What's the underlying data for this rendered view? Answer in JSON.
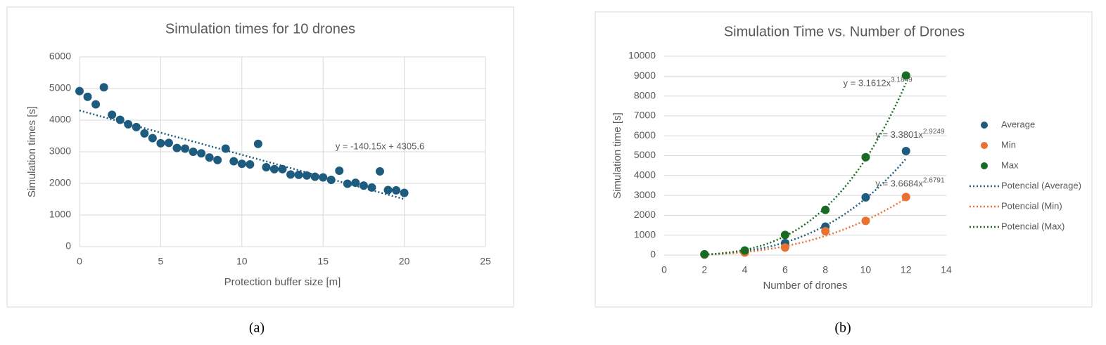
{
  "chart_data": [
    {
      "type": "scatter",
      "title": "Simulation times for 10 drones",
      "caption": "(a)",
      "x_label": "Protection buffer size [m]",
      "y_label": "Simulation times [s]",
      "x": [
        0,
        0.5,
        1,
        1.5,
        2,
        2.5,
        3,
        3.5,
        4,
        4.5,
        5,
        5.5,
        6,
        6.5,
        7,
        7.5,
        8,
        8.5,
        9,
        9.5,
        10,
        10.5,
        11,
        11.5,
        12,
        12.5,
        13,
        13.5,
        14,
        14.5,
        15,
        15.5,
        16,
        16.5,
        17,
        17.5,
        18,
        18.5,
        19,
        19.5,
        20
      ],
      "values": [
        4920,
        4740,
        4500,
        5040,
        4170,
        4010,
        3870,
        3780,
        3580,
        3430,
        3270,
        3280,
        3120,
        3100,
        3000,
        2950,
        2820,
        2740,
        3100,
        2700,
        2620,
        2600,
        3250,
        2510,
        2450,
        2450,
        2280,
        2270,
        2250,
        2210,
        2190,
        2110,
        2400,
        1990,
        2020,
        1930,
        1870,
        2380,
        1790,
        1780,
        1700
      ],
      "color": "#1d5b7f",
      "trendline": {
        "kind": "linear",
        "slope": -140.15,
        "intercept": 4305.6,
        "label": "y = -140.15x + 4305.6"
      },
      "xlim": [
        0,
        25
      ],
      "xticks": [
        0,
        5,
        10,
        15,
        20,
        25
      ],
      "ylim": [
        0,
        6000
      ],
      "yticks": [
        0,
        1000,
        2000,
        3000,
        4000,
        5000,
        6000
      ],
      "grid": "both"
    },
    {
      "type": "scatter",
      "title": "Simulation Time vs. Number of Drones",
      "caption": "(b)",
      "x_label": "Number of drones",
      "y_label": "Simulation time [s]",
      "x": [
        2,
        4,
        6,
        8,
        10,
        12
      ],
      "series": [
        {
          "name": "Average",
          "color": "#1d5b7f",
          "values": [
            30,
            200,
            600,
            1430,
            2900,
            5230
          ],
          "trendline": {
            "kind": "power",
            "name": "Potencial (Average)",
            "a": 3.3801,
            "b": 2.9249,
            "label": "y = 3.3801x",
            "label_exponent": "2.9249"
          }
        },
        {
          "name": "Min",
          "color": "#e97132",
          "values": [
            20,
            130,
            380,
            1200,
            1720,
            2920
          ],
          "trendline": {
            "kind": "power",
            "name": "Potencial (Min)",
            "a": 3.6684,
            "b": 2.6791,
            "label": "y = 3.6684x",
            "label_exponent": "2.6791"
          }
        },
        {
          "name": "Max",
          "color": "#196b24",
          "values": [
            40,
            230,
            1010,
            2270,
            4920,
            9030
          ],
          "trendline": {
            "kind": "power",
            "name": "Potencial (Max)",
            "a": 3.1612,
            "b": 3.1849,
            "label": "y = 3.1612x",
            "label_exponent": "3.1849"
          }
        }
      ],
      "xlim": [
        0,
        14
      ],
      "xticks": [
        0,
        2,
        4,
        6,
        8,
        10,
        12,
        14
      ],
      "ylim": [
        0,
        10000
      ],
      "yticks": [
        0,
        1000,
        2000,
        3000,
        4000,
        5000,
        6000,
        7000,
        8000,
        9000,
        10000
      ],
      "grid": "y",
      "legend": "right"
    }
  ]
}
